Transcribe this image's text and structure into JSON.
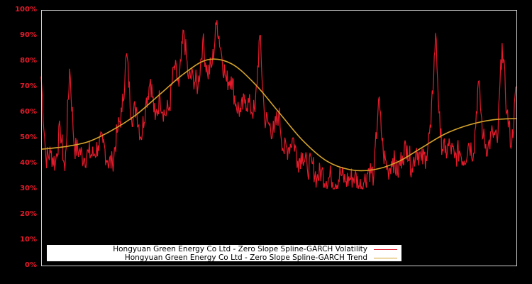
{
  "chart_data": {
    "type": "line",
    "title": "",
    "xlabel": "",
    "ylabel": "",
    "ylim": [
      0,
      100
    ],
    "y_ticks": [
      "0%",
      "10%",
      "20%",
      "30%",
      "40%",
      "50%",
      "60%",
      "70%",
      "80%",
      "90%",
      "100%"
    ],
    "x_ticks": [],
    "grid": false,
    "background": "#000000",
    "legend_position": "bottom-left inside plot",
    "series": [
      {
        "name": "Hongyuan Green Energy Co Ltd - Zero Slope Spline-GARCH Volatility",
        "color": "#e41a2a",
        "x_fraction": [
          0.0,
          0.01,
          0.02,
          0.03,
          0.04,
          0.05,
          0.06,
          0.07,
          0.08,
          0.09,
          0.1,
          0.11,
          0.12,
          0.13,
          0.14,
          0.15,
          0.16,
          0.17,
          0.18,
          0.19,
          0.2,
          0.21,
          0.22,
          0.23,
          0.24,
          0.25,
          0.26,
          0.27,
          0.28,
          0.29,
          0.3,
          0.31,
          0.32,
          0.33,
          0.34,
          0.35,
          0.36,
          0.37,
          0.38,
          0.39,
          0.4,
          0.41,
          0.42,
          0.43,
          0.44,
          0.45,
          0.46,
          0.47,
          0.48,
          0.49,
          0.5,
          0.51,
          0.52,
          0.53,
          0.54,
          0.55,
          0.56,
          0.57,
          0.58,
          0.59,
          0.6,
          0.61,
          0.62,
          0.63,
          0.64,
          0.65,
          0.66,
          0.67,
          0.68,
          0.69,
          0.7,
          0.71,
          0.72,
          0.73,
          0.74,
          0.75,
          0.76,
          0.77,
          0.78,
          0.79,
          0.8,
          0.81,
          0.82,
          0.83,
          0.84,
          0.85,
          0.86,
          0.87,
          0.88,
          0.89,
          0.9,
          0.91,
          0.92,
          0.93,
          0.94,
          0.95,
          0.96,
          0.97,
          0.98,
          0.99,
          1.0
        ],
        "values": [
          74,
          42,
          44,
          40,
          54,
          37,
          77,
          46,
          45,
          42,
          44,
          43,
          47,
          48,
          41,
          40,
          52,
          60,
          83,
          58,
          62,
          50,
          63,
          73,
          57,
          66,
          59,
          62,
          78,
          70,
          92,
          73,
          74,
          70,
          88,
          75,
          79,
          96,
          82,
          72,
          74,
          63,
          60,
          65,
          62,
          60,
          90,
          58,
          55,
          52,
          60,
          45,
          46,
          50,
          41,
          44,
          38,
          40,
          34,
          37,
          33,
          35,
          32,
          36,
          33,
          34,
          35,
          31,
          33,
          38,
          35,
          65,
          44,
          37,
          42,
          36,
          43,
          47,
          38,
          46,
          41,
          43,
          54,
          91,
          50,
          44,
          47,
          42,
          45,
          41,
          48,
          44,
          72,
          50,
          46,
          52,
          48,
          87,
          60,
          47,
          70
        ]
      },
      {
        "name": "Hongyuan Green Energy Co Ltd - Zero Slope Spline-GARCH Trend",
        "color": "#d4a32a",
        "x_fraction": [
          0.0,
          0.05,
          0.1,
          0.15,
          0.2,
          0.25,
          0.3,
          0.35,
          0.4,
          0.45,
          0.5,
          0.55,
          0.6,
          0.65,
          0.7,
          0.75,
          0.8,
          0.85,
          0.9,
          0.95,
          1.0
        ],
        "values": [
          45.5,
          46.5,
          48.5,
          53,
          59,
          67,
          75,
          80.5,
          79,
          71,
          60,
          49,
          41,
          37.5,
          37.5,
          40.5,
          46,
          51.5,
          55,
          57,
          57.5
        ]
      }
    ]
  },
  "legend": {
    "items": [
      {
        "label": "Hongyuan Green Energy Co Ltd - Zero Slope Spline-GARCH Volatility",
        "color": "#e41a2a"
      },
      {
        "label": "Hongyuan Green Energy Co Ltd - Zero Slope Spline-GARCH Trend",
        "color": "#d4a32a"
      }
    ]
  },
  "colors": {
    "background": "#000000",
    "axis": "#cccccc",
    "tick_label": "#e41a2a",
    "legend_bg": "#ffffff"
  }
}
